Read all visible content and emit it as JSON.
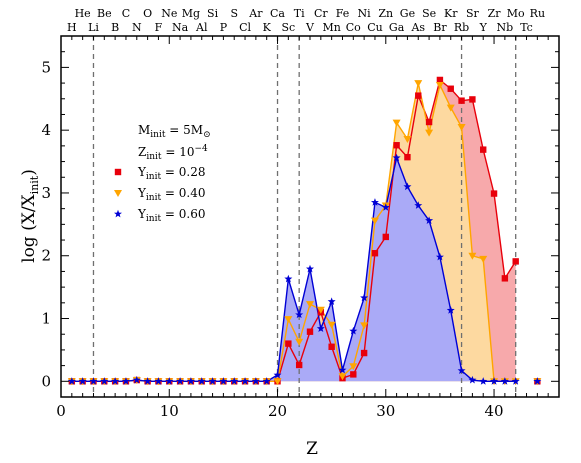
{
  "chart_data": {
    "type": "line",
    "title": "",
    "xlabel": "Z",
    "ylabel": "log (X/X",
    "ylabel_sub": "init",
    "ylabel_close": ")",
    "xlim": [
      0,
      46
    ],
    "ylim": [
      -0.25,
      5.5
    ],
    "x_ticks": [
      0,
      10,
      20,
      30,
      40
    ],
    "y_ticks": [
      0,
      1,
      2,
      3,
      4,
      5
    ],
    "grid": false,
    "legend_position": "left",
    "vertical_dashed_lines": [
      3,
      20,
      22,
      37,
      42
    ],
    "element_labels_bottom_row": [
      {
        "z": 1,
        "symbol": "H"
      },
      {
        "z": 3,
        "symbol": "Li"
      },
      {
        "z": 5,
        "symbol": "B"
      },
      {
        "z": 7,
        "symbol": "N"
      },
      {
        "z": 9,
        "symbol": "F"
      },
      {
        "z": 11,
        "symbol": "Na"
      },
      {
        "z": 13,
        "symbol": "Al"
      },
      {
        "z": 15,
        "symbol": "P"
      },
      {
        "z": 17,
        "symbol": "Cl"
      },
      {
        "z": 19,
        "symbol": "K"
      },
      {
        "z": 21,
        "symbol": "Sc"
      },
      {
        "z": 23,
        "symbol": "V"
      },
      {
        "z": 25,
        "symbol": "Mn"
      },
      {
        "z": 27,
        "symbol": "Co"
      },
      {
        "z": 29,
        "symbol": "Cu"
      },
      {
        "z": 31,
        "symbol": "Ga"
      },
      {
        "z": 33,
        "symbol": "As"
      },
      {
        "z": 35,
        "symbol": "Br"
      },
      {
        "z": 37,
        "symbol": "Rb"
      },
      {
        "z": 39,
        "symbol": "Y"
      },
      {
        "z": 41,
        "symbol": "Nb"
      },
      {
        "z": 43,
        "symbol": "Tc"
      }
    ],
    "element_labels_top_row": [
      {
        "z": 2,
        "symbol": "He"
      },
      {
        "z": 4,
        "symbol": "Be"
      },
      {
        "z": 6,
        "symbol": "C"
      },
      {
        "z": 8,
        "symbol": "O"
      },
      {
        "z": 10,
        "symbol": "Ne"
      },
      {
        "z": 12,
        "symbol": "Mg"
      },
      {
        "z": 14,
        "symbol": "Si"
      },
      {
        "z": 16,
        "symbol": "S"
      },
      {
        "z": 18,
        "symbol": "Ar"
      },
      {
        "z": 20,
        "symbol": "Ca"
      },
      {
        "z": 22,
        "symbol": "Ti"
      },
      {
        "z": 24,
        "symbol": "Cr"
      },
      {
        "z": 26,
        "symbol": "Fe"
      },
      {
        "z": 28,
        "symbol": "Ni"
      },
      {
        "z": 30,
        "symbol": "Zn"
      },
      {
        "z": 32,
        "symbol": "Ge"
      },
      {
        "z": 34,
        "symbol": "Se"
      },
      {
        "z": 36,
        "symbol": "Kr"
      },
      {
        "z": 38,
        "symbol": "Sr"
      },
      {
        "z": 40,
        "symbol": "Zr"
      },
      {
        "z": 42,
        "symbol": "Mo"
      },
      {
        "z": 44,
        "symbol": "Ru"
      }
    ],
    "legend_header": [
      {
        "main": "M",
        "sub": "init",
        "rest": " = 5M",
        "sub2": "⊙"
      },
      {
        "main": "Z",
        "sub": "init",
        "rest": " = 10",
        "sup": "−4"
      }
    ],
    "series": [
      {
        "name": "Y",
        "name_sub": "init",
        "name_rest": " = 0.28",
        "marker": "square",
        "color": "#e8000b",
        "fill": "#f7a9ab",
        "x": [
          1,
          2,
          3,
          4,
          5,
          6,
          7,
          8,
          9,
          10,
          11,
          12,
          13,
          14,
          15,
          16,
          17,
          18,
          19,
          20,
          21,
          22,
          23,
          24,
          25,
          26,
          27,
          28,
          29,
          30,
          31,
          32,
          33,
          34,
          35,
          36,
          37,
          38,
          39,
          40,
          41,
          42
        ],
        "y": [
          0.0,
          0.0,
          0.0,
          0.0,
          0.0,
          0.0,
          0.02,
          0.0,
          0.0,
          0.0,
          0.0,
          0.0,
          0.0,
          0.0,
          0.0,
          0.0,
          0.0,
          0.0,
          0.0,
          0.0,
          0.6,
          0.26,
          0.79,
          1.1,
          0.55,
          0.05,
          0.11,
          0.45,
          2.04,
          2.3,
          3.76,
          3.57,
          4.55,
          4.13,
          4.8,
          4.66,
          4.47,
          4.49,
          3.69,
          2.99,
          1.64,
          1.91
        ]
      },
      {
        "name": "Y",
        "name_sub": "init",
        "name_rest": " = 0.40",
        "marker": "triangle-down",
        "color": "#ffa500",
        "fill": "#fdd9a0",
        "x": [
          1,
          2,
          3,
          4,
          5,
          6,
          7,
          8,
          9,
          10,
          11,
          12,
          13,
          14,
          15,
          16,
          17,
          18,
          19,
          20,
          21,
          22,
          23,
          24,
          25,
          26,
          27,
          28,
          29,
          30,
          31,
          32,
          33,
          34,
          35,
          36,
          37,
          38,
          39,
          40,
          41,
          42
        ],
        "y": [
          0.0,
          0.0,
          0.0,
          0.0,
          0.0,
          0.0,
          0.02,
          0.0,
          0.0,
          0.0,
          0.0,
          0.0,
          0.0,
          0.0,
          0.0,
          0.0,
          0.0,
          0.0,
          0.0,
          0.0,
          0.99,
          0.63,
          1.23,
          1.14,
          0.9,
          0.08,
          0.24,
          0.89,
          2.56,
          2.8,
          4.12,
          3.86,
          4.75,
          3.96,
          4.72,
          4.36,
          4.05,
          2.0,
          1.95,
          0.0,
          0.0,
          0.0
        ]
      },
      {
        "name": "Y",
        "name_sub": "init",
        "name_rest": " = 0.60",
        "marker": "star",
        "color": "#0000d5",
        "fill": "#aaaaf7",
        "x": [
          1,
          2,
          3,
          4,
          5,
          6,
          7,
          8,
          9,
          10,
          11,
          12,
          13,
          14,
          15,
          16,
          17,
          18,
          19,
          20,
          21,
          22,
          23,
          24,
          25,
          26,
          27,
          28,
          29,
          30,
          31,
          32,
          33,
          34,
          35,
          36,
          37,
          38,
          39,
          40,
          41,
          42
        ],
        "y": [
          0.0,
          0.0,
          0.0,
          0.0,
          0.0,
          0.0,
          0.02,
          0.0,
          0.0,
          0.0,
          0.0,
          0.0,
          0.0,
          0.0,
          0.0,
          0.0,
          0.0,
          0.0,
          0.0,
          0.1,
          1.63,
          1.06,
          1.79,
          0.84,
          1.27,
          0.18,
          0.8,
          1.33,
          2.85,
          2.77,
          3.56,
          3.1,
          2.8,
          2.56,
          1.98,
          1.13,
          0.17,
          0.02,
          0.0,
          0.0,
          0.0,
          0.0
        ]
      }
    ],
    "isolated_point": {
      "x": 44,
      "y": 0.0
    }
  }
}
